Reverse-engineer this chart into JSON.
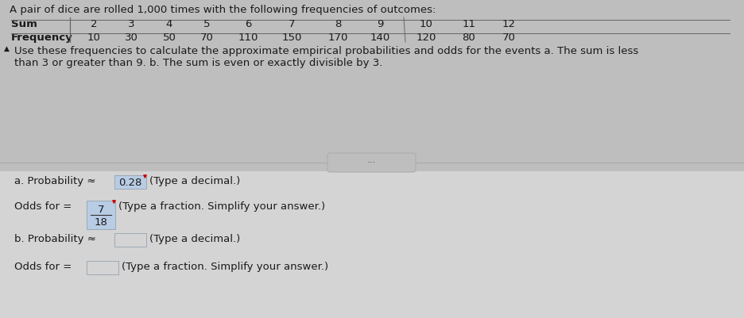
{
  "title_line": "A pair of dice are rolled 1,000 times with the following frequencies of outcomes:",
  "table_header": [
    "Sum",
    "2",
    "3",
    "4",
    "5",
    "6",
    "7",
    "8",
    "9",
    "10",
    "11",
    "12"
  ],
  "table_row": [
    "Frequency",
    "10",
    "30",
    "50",
    "70",
    "110",
    "150",
    "170",
    "140",
    "120",
    "80",
    "70"
  ],
  "instruction_line1": "Use these frequencies to calculate the approximate empirical probabilities and odds for the events a. The sum is less",
  "instruction_line2": "than 3 or greater than 9. b. The sum is even or exactly divisible by 3.",
  "part_a_prob_label": "a. Probability ≈",
  "part_a_prob_value": "0.28",
  "part_a_prob_suffix": "(Type a decimal.)",
  "part_a_odds_label": "Odds for =",
  "part_a_odds_num": "7",
  "part_a_odds_den": "18",
  "part_a_odds_suffix": "(Type a fraction. Simplify your answer.)",
  "part_b_prob_label": "b. Probability ≈",
  "part_b_prob_suffix": "(Type a decimal.)",
  "part_b_odds_label": "Odds for =",
  "part_b_odds_suffix": "(Type a fraction. Simplify your answer.)",
  "upper_bg": "#bebebe",
  "lower_bg": "#d4d4d4",
  "text_color": "#1a1a1a",
  "answer_box_blue": "#b8cce4",
  "answer_box_empty": "#d0d0d0",
  "box_edge": "#8899aa",
  "font_size": 9.5
}
